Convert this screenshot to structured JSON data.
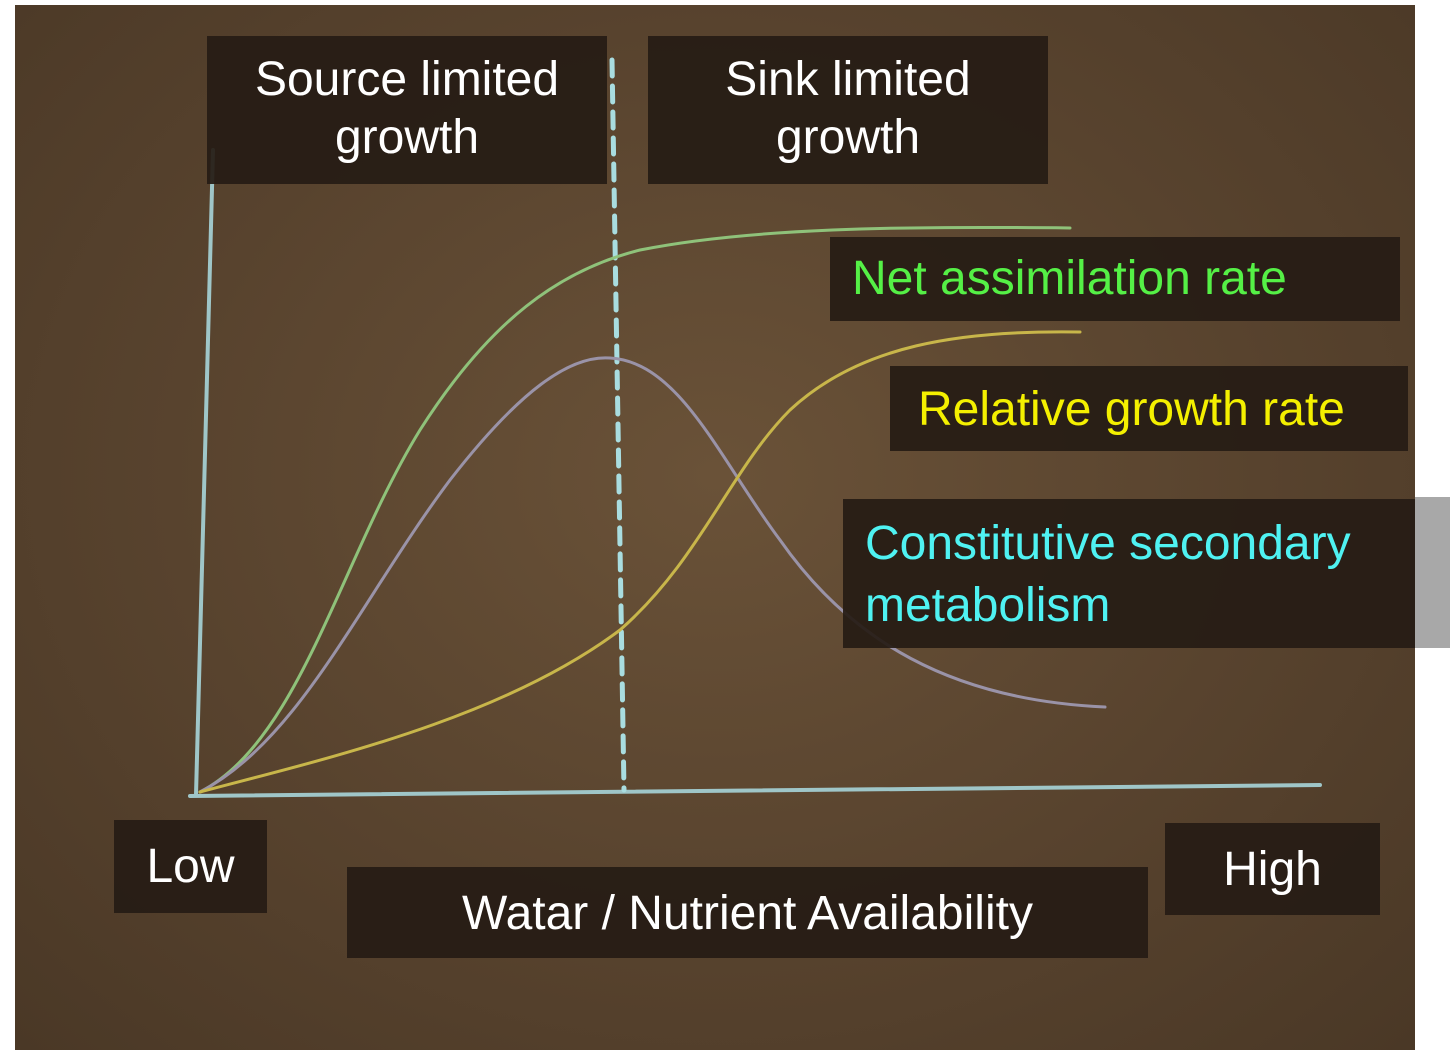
{
  "regions": [
    {
      "lines": [
        "Source limited",
        "growth"
      ]
    },
    {
      "lines": [
        "Sink limited",
        "growth"
      ]
    }
  ],
  "curves": [
    {
      "lines": [
        "Net assimilation rate"
      ]
    },
    {
      "lines": [
        "Relative growth rate"
      ]
    },
    {
      "lines": [
        "Constitutive secondary",
        "metabolism"
      ]
    }
  ],
  "axis": {
    "low": "Low",
    "high": "High",
    "label": "Watar / Nutrient Availability"
  }
}
